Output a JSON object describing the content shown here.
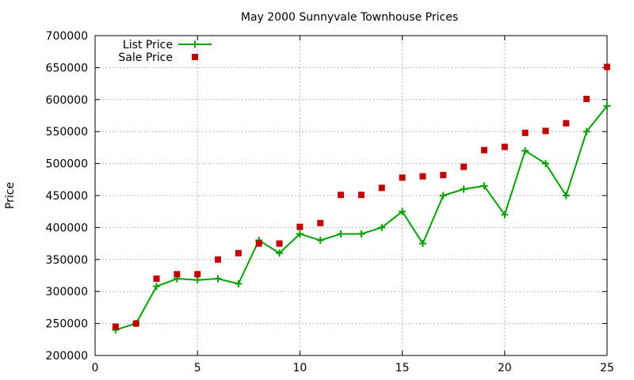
{
  "chart_data": {
    "type": "line",
    "title": "May 2000 Sunnyvale Townhouse Prices",
    "xlabel": "",
    "ylabel": "Price",
    "xlim": [
      0,
      25
    ],
    "ylim": [
      200000,
      700000
    ],
    "xticks": [
      0,
      5,
      10,
      15,
      20,
      25
    ],
    "yticks": [
      200000,
      250000,
      300000,
      350000,
      400000,
      450000,
      500000,
      550000,
      600000,
      650000,
      700000
    ],
    "grid": true,
    "legend_position": "top-left",
    "x": [
      1,
      2,
      3,
      4,
      5,
      6,
      7,
      8,
      9,
      10,
      11,
      12,
      13,
      14,
      15,
      16,
      17,
      18,
      19,
      20,
      21,
      22,
      23,
      24,
      25
    ],
    "series": [
      {
        "name": "List Price",
        "style": "line-points",
        "marker": "plus",
        "color": "#00a000",
        "values": [
          240000,
          250000,
          308000,
          320000,
          318000,
          320000,
          312000,
          380000,
          360000,
          390000,
          380000,
          390000,
          390000,
          400000,
          425000,
          375000,
          450000,
          460000,
          465000,
          420000,
          520000,
          500000,
          450000,
          550000,
          590000
        ]
      },
      {
        "name": "Sale Price",
        "style": "points",
        "marker": "square",
        "color": "#c00000",
        "values": [
          245000,
          250000,
          320000,
          327000,
          327000,
          350000,
          360000,
          375000,
          375000,
          401000,
          407000,
          451000,
          451000,
          462000,
          478000,
          480000,
          482000,
          495000,
          521000,
          526000,
          548000,
          551000,
          563000,
          601000,
          651000
        ]
      }
    ]
  }
}
